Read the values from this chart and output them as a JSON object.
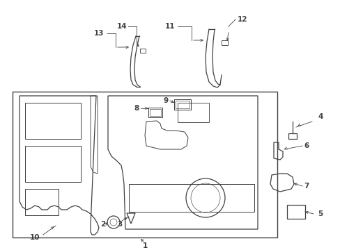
{
  "bg_color": "#ffffff",
  "line_color": "#404040",
  "fig_width": 4.89,
  "fig_height": 3.6,
  "dpi": 100
}
